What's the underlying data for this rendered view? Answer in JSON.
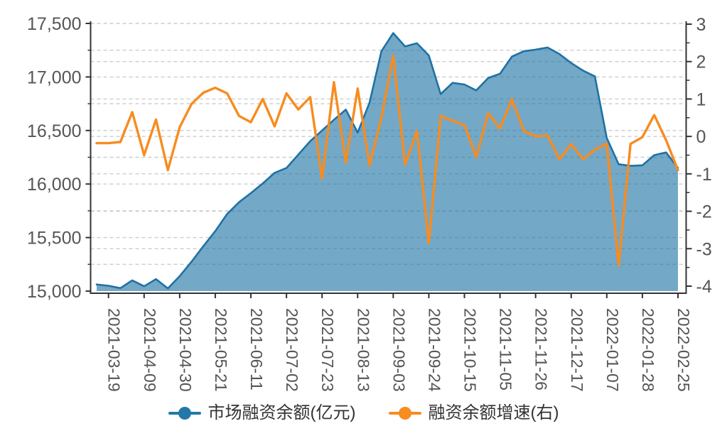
{
  "chart_data": {
    "type": "area+line dual y-axis",
    "title": "",
    "n_points": 50,
    "categories": [
      "2021-03-19",
      "2021-04-09",
      "2021-04-30",
      "2021-05-21",
      "2021-06-11",
      "2021-07-02",
      "2021-07-23",
      "2021-08-13",
      "2021-09-03",
      "2021-09-24",
      "2021-10-15",
      "2021-11-05",
      "2021-11-26",
      "2021-12-17",
      "2022-01-07",
      "2022-01-28",
      "2022-02-25"
    ],
    "x_tick_start_index": 1,
    "x_tick_every": 3,
    "series": [
      {
        "name": "市场融资余额(亿元)",
        "type": "area",
        "axis": "left",
        "color": "#2478A8",
        "line_color": "#1F72A4",
        "fill_color": "#1F72A4",
        "fill_opacity": 0.62,
        "values": [
          15062,
          15050,
          15028,
          15100,
          15045,
          15112,
          15025,
          15140,
          15275,
          15420,
          15560,
          15720,
          15830,
          15915,
          16005,
          16105,
          16150,
          16275,
          16400,
          16500,
          16600,
          16695,
          16480,
          16760,
          17240,
          17410,
          17285,
          17315,
          17200,
          16840,
          16945,
          16930,
          16875,
          16990,
          17030,
          17190,
          17240,
          17255,
          17275,
          17215,
          17130,
          17060,
          17005,
          16430,
          16185,
          16170,
          16175,
          16270,
          16295,
          16150
        ]
      },
      {
        "name": "融资余额增速(右)",
        "type": "line",
        "axis": "right",
        "color": "#F78C1F",
        "values": [
          -0.18,
          -0.18,
          -0.15,
          0.65,
          -0.5,
          0.45,
          -0.9,
          0.25,
          0.87,
          1.17,
          1.3,
          1.15,
          0.55,
          0.38,
          1.0,
          0.27,
          1.15,
          0.72,
          1.05,
          -1.13,
          1.45,
          -0.7,
          1.28,
          -0.78,
          0.5,
          2.16,
          -0.75,
          0.15,
          -2.85,
          0.55,
          0.42,
          0.3,
          -0.55,
          0.62,
          0.21,
          1.0,
          0.15,
          0.0,
          0.03,
          -0.61,
          -0.21,
          -0.61,
          -0.35,
          -0.2,
          -3.45,
          -0.2,
          -0.02,
          0.57,
          -0.1,
          -0.9
        ]
      }
    ],
    "left_axis": {
      "min": 15000,
      "max": 17500,
      "tick_step": 500,
      "minor_step": 250,
      "tick_labels": [
        "15,000",
        "15,500",
        "16,000",
        "16,500",
        "17,000",
        "17,500"
      ]
    },
    "right_axis": {
      "min": -4,
      "max": 3,
      "tick_step": 1,
      "minor_step": 0.5,
      "tick_labels": [
        "3",
        "2",
        "1",
        "0",
        "-1",
        "-2",
        "-3",
        "-4"
      ]
    },
    "grid": "dashed",
    "legend_position": "bottom",
    "xlabel": "",
    "ylabel": ""
  },
  "legend": {
    "items": [
      {
        "label": "市场融资余额(亿元)",
        "color": "#2478A8"
      },
      {
        "label": "融资余额增速(右)",
        "color": "#F78C1F"
      }
    ]
  },
  "style": {
    "axis_line_color": "#333333",
    "tick_label_color": "#555555",
    "grid_color": "#cccccc",
    "background": "#ffffff"
  }
}
